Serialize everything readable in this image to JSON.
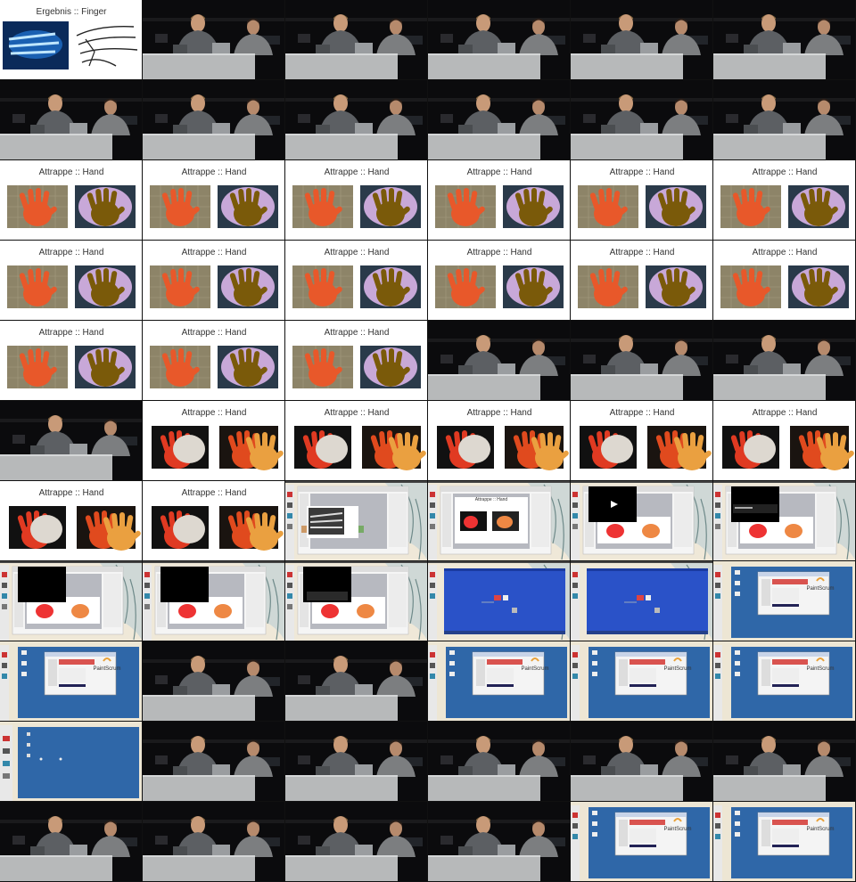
{
  "contact_sheet": {
    "columns": 6,
    "frames": [
      {
        "type": "slide-finger",
        "caption": "Ergebnis :: Finger"
      },
      {
        "type": "studio"
      },
      {
        "type": "studio"
      },
      {
        "type": "studio"
      },
      {
        "type": "studio"
      },
      {
        "type": "studio"
      },
      {
        "type": "studio"
      },
      {
        "type": "studio"
      },
      {
        "type": "studio"
      },
      {
        "type": "studio"
      },
      {
        "type": "studio"
      },
      {
        "type": "studio"
      },
      {
        "type": "slide-hand-tray",
        "caption": "Attrappe :: Hand"
      },
      {
        "type": "slide-hand-tray",
        "caption": "Attrappe :: Hand"
      },
      {
        "type": "slide-hand-tray",
        "caption": "Attrappe :: Hand"
      },
      {
        "type": "slide-hand-tray",
        "caption": "Attrappe :: Hand"
      },
      {
        "type": "slide-hand-tray",
        "caption": "Attrappe :: Hand"
      },
      {
        "type": "slide-hand-tray",
        "caption": "Attrappe :: Hand"
      },
      {
        "type": "slide-hand-tray",
        "caption": "Attrappe :: Hand"
      },
      {
        "type": "slide-hand-tray",
        "caption": "Attrappe :: Hand"
      },
      {
        "type": "slide-hand-tray",
        "caption": "Attrappe :: Hand"
      },
      {
        "type": "slide-hand-tray",
        "caption": "Attrappe :: Hand"
      },
      {
        "type": "slide-hand-tray",
        "caption": "Attrappe :: Hand"
      },
      {
        "type": "slide-hand-tray",
        "caption": "Attrappe :: Hand"
      },
      {
        "type": "slide-hand-tray",
        "caption": "Attrappe :: Hand"
      },
      {
        "type": "slide-hand-tray",
        "caption": "Attrappe :: Hand"
      },
      {
        "type": "slide-hand-tray",
        "caption": "Attrappe :: Hand"
      },
      {
        "type": "studio"
      },
      {
        "type": "studio"
      },
      {
        "type": "studio"
      },
      {
        "type": "studio"
      },
      {
        "type": "slide-hand-cast",
        "caption": "Attrappe :: Hand"
      },
      {
        "type": "slide-hand-cast",
        "caption": "Attrappe :: Hand"
      },
      {
        "type": "slide-hand-cast",
        "caption": "Attrappe :: Hand"
      },
      {
        "type": "slide-hand-cast",
        "caption": "Attrappe :: Hand"
      },
      {
        "type": "slide-hand-cast",
        "caption": "Attrappe :: Hand"
      },
      {
        "type": "slide-hand-cast",
        "caption": "Attrappe :: Hand"
      },
      {
        "type": "slide-hand-cast",
        "caption": "Attrappe :: Hand"
      },
      {
        "type": "desktop-keynote",
        "variant": "photo"
      },
      {
        "type": "desktop-keynote",
        "variant": "slide",
        "caption": "Attrappe :: Hand"
      },
      {
        "type": "desktop-keynote",
        "variant": "play"
      },
      {
        "type": "desktop-keynote",
        "variant": "video"
      },
      {
        "type": "desktop-keynote",
        "variant": "black"
      },
      {
        "type": "desktop-keynote",
        "variant": "black"
      },
      {
        "type": "desktop-keynote",
        "variant": "black2"
      },
      {
        "type": "desktop-xp"
      },
      {
        "type": "desktop-xp"
      },
      {
        "type": "desktop-blue",
        "label": "PaintScrum"
      },
      {
        "type": "desktop-blue",
        "label": "PaintScrum"
      },
      {
        "type": "studio"
      },
      {
        "type": "studio"
      },
      {
        "type": "desktop-blue",
        "label": "PaintScrum"
      },
      {
        "type": "desktop-blue",
        "label": "PaintScrum"
      },
      {
        "type": "desktop-blue",
        "label": "PaintScrum"
      },
      {
        "type": "desktop-empty"
      },
      {
        "type": "studio"
      },
      {
        "type": "studio"
      },
      {
        "type": "studio"
      },
      {
        "type": "studio"
      },
      {
        "type": "studio"
      },
      {
        "type": "studio"
      },
      {
        "type": "studio"
      },
      {
        "type": "studio"
      },
      {
        "type": "studio"
      },
      {
        "type": "desktop-blue",
        "label": "PaintScrum"
      },
      {
        "type": "desktop-blue",
        "label": "PaintScrum"
      }
    ]
  },
  "colors": {
    "studio_bg": "#0b0b0d",
    "desk": "#b7b9ba",
    "slide_bg": "#ffffff",
    "hand_red": "#e8582a",
    "hand_mold": "#7a5a0a",
    "desktop_blue": "#2f67a8",
    "xp_blue": "#2a52c8",
    "fur": "#cfd8d6"
  }
}
